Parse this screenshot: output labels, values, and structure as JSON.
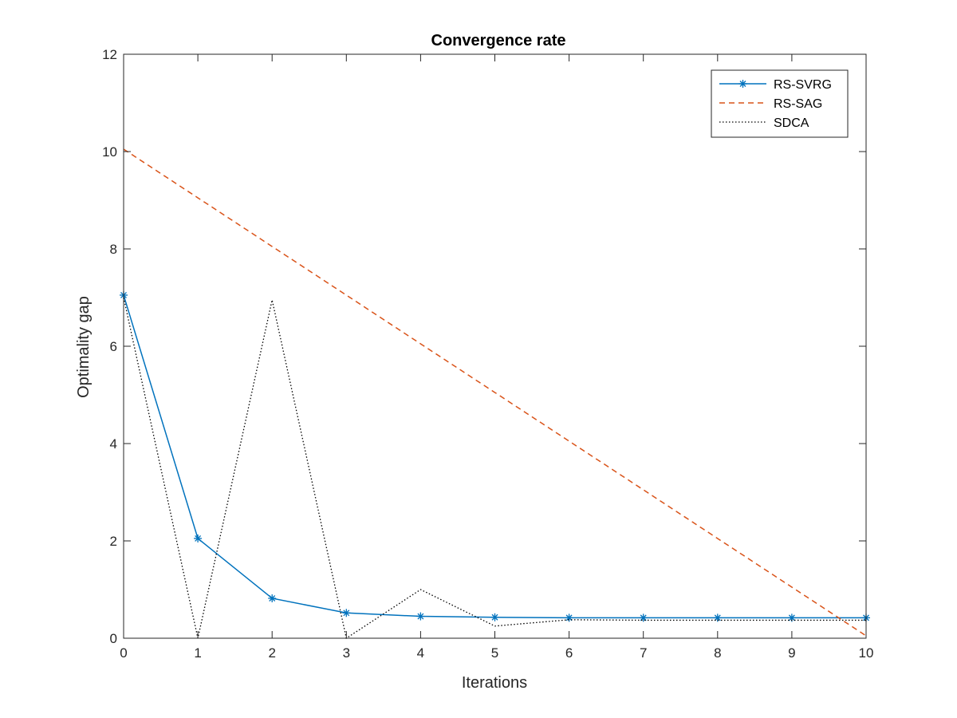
{
  "chart_data": {
    "type": "line",
    "title": "Convergence rate",
    "xlabel": "Iterations",
    "ylabel": "Optimality gap",
    "xlim": [
      0,
      10
    ],
    "ylim": [
      0,
      12
    ],
    "xticks": [
      "0",
      "1",
      "2",
      "3",
      "4",
      "5",
      "6",
      "7",
      "8",
      "9",
      "10"
    ],
    "yticks": [
      "0",
      "2",
      "4",
      "6",
      "8",
      "10",
      "12"
    ],
    "x": [
      0,
      1,
      2,
      3,
      4,
      5,
      6,
      7,
      8,
      9,
      10
    ],
    "grid": false,
    "legend_position": "top-right",
    "series": [
      {
        "name": "RS-SVRG",
        "values": [
          7.05,
          2.05,
          0.82,
          0.52,
          0.45,
          0.43,
          0.42,
          0.42,
          0.42,
          0.42,
          0.42
        ],
        "color": "#0072BD",
        "style": "solid",
        "marker": "asterisk"
      },
      {
        "name": "RS-SAG",
        "values": [
          10.05,
          9.05,
          8.05,
          7.05,
          6.05,
          5.05,
          4.05,
          3.05,
          2.05,
          1.05,
          0.05
        ],
        "color": "#D95319",
        "style": "dashed",
        "marker": "none"
      },
      {
        "name": "SDCA",
        "values": [
          7.0,
          0.0,
          6.95,
          0.0,
          1.0,
          0.25,
          0.38,
          0.37,
          0.37,
          0.37,
          0.37
        ],
        "color": "#000000",
        "style": "dotted",
        "marker": "none"
      }
    ]
  }
}
